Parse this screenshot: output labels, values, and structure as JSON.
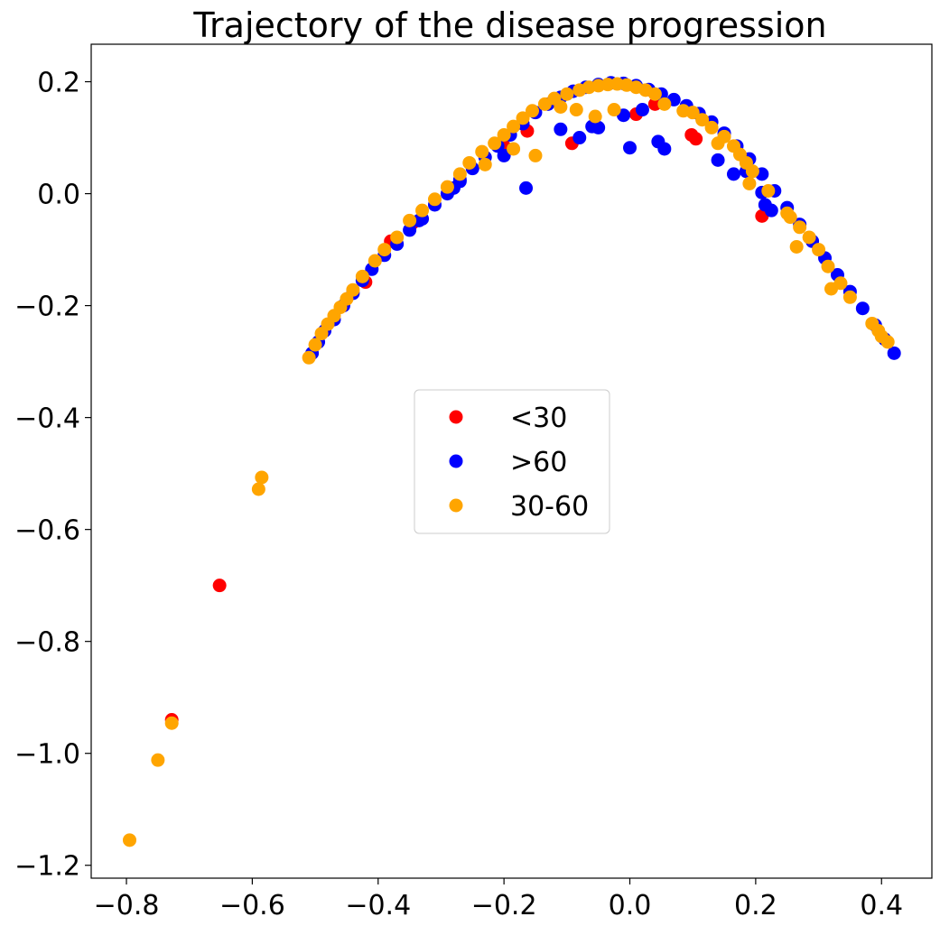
{
  "chart_data": {
    "type": "scatter",
    "title": "Trajectory of the disease progression",
    "xlabel": "",
    "ylabel": "",
    "xlim": [
      -0.856,
      0.48
    ],
    "ylim": [
      -1.223,
      0.267
    ],
    "xticks": [
      -0.8,
      -0.6,
      -0.4,
      -0.2,
      0.0,
      0.2,
      0.4
    ],
    "xtick_labels": [
      "−0.8",
      "−0.6",
      "−0.4",
      "−0.2",
      "0.0",
      "0.2",
      "0.4"
    ],
    "yticks": [
      0.2,
      0.0,
      -0.2,
      -0.4,
      -0.6,
      -0.8,
      -1.0,
      -1.2
    ],
    "ytick_labels": [
      "0.2",
      "0.0",
      "−0.2",
      "−0.4",
      "−0.6",
      "−0.8",
      "−1.0",
      "−1.2"
    ],
    "grid": false,
    "legend_position": "center",
    "series": [
      {
        "name": "<30",
        "color": "#ff0000",
        "points": [
          [
            -0.728,
            -0.94
          ],
          [
            -0.652,
            -0.7
          ],
          [
            -0.42,
            -0.158
          ],
          [
            -0.38,
            -0.085
          ],
          [
            -0.345,
            -0.052
          ],
          [
            -0.2,
            0.085
          ],
          [
            -0.163,
            0.112
          ],
          [
            -0.092,
            0.09
          ],
          [
            0.01,
            0.142
          ],
          [
            0.04,
            0.16
          ],
          [
            0.098,
            0.105
          ],
          [
            0.105,
            0.098
          ],
          [
            0.21,
            -0.04
          ]
        ]
      },
      {
        "name": ">60",
        "color": "#0000ff",
        "points": [
          [
            -0.505,
            -0.285
          ],
          [
            -0.495,
            -0.265
          ],
          [
            -0.485,
            -0.245
          ],
          [
            -0.47,
            -0.225
          ],
          [
            -0.455,
            -0.2
          ],
          [
            -0.44,
            -0.178
          ],
          [
            -0.425,
            -0.155
          ],
          [
            -0.41,
            -0.135
          ],
          [
            -0.39,
            -0.11
          ],
          [
            -0.37,
            -0.09
          ],
          [
            -0.35,
            -0.065
          ],
          [
            -0.33,
            -0.045
          ],
          [
            -0.31,
            -0.02
          ],
          [
            -0.29,
            0.0
          ],
          [
            -0.27,
            0.022
          ],
          [
            -0.25,
            0.045
          ],
          [
            -0.23,
            0.065
          ],
          [
            -0.21,
            0.085
          ],
          [
            -0.19,
            0.105
          ],
          [
            -0.17,
            0.125
          ],
          [
            -0.15,
            0.145
          ],
          [
            -0.13,
            0.16
          ],
          [
            -0.11,
            0.172
          ],
          [
            -0.09,
            0.183
          ],
          [
            -0.07,
            0.19
          ],
          [
            -0.05,
            0.195
          ],
          [
            -0.03,
            0.198
          ],
          [
            -0.01,
            0.197
          ],
          [
            0.01,
            0.193
          ],
          [
            0.03,
            0.186
          ],
          [
            0.05,
            0.178
          ],
          [
            0.07,
            0.168
          ],
          [
            0.09,
            0.157
          ],
          [
            0.11,
            0.143
          ],
          [
            0.13,
            0.128
          ],
          [
            0.15,
            0.108
          ],
          [
            0.17,
            0.085
          ],
          [
            0.19,
            0.062
          ],
          [
            0.21,
            0.035
          ],
          [
            0.23,
            0.005
          ],
          [
            0.25,
            -0.025
          ],
          [
            0.27,
            -0.055
          ],
          [
            0.29,
            -0.085
          ],
          [
            0.31,
            -0.115
          ],
          [
            0.33,
            -0.145
          ],
          [
            0.35,
            -0.175
          ],
          [
            0.37,
            -0.205
          ],
          [
            0.39,
            -0.235
          ],
          [
            0.405,
            -0.26
          ],
          [
            0.42,
            -0.285
          ],
          [
            -0.165,
            0.01
          ],
          [
            -0.2,
            0.068
          ],
          [
            -0.11,
            0.115
          ],
          [
            -0.08,
            0.1
          ],
          [
            -0.06,
            0.12
          ],
          [
            -0.05,
            0.118
          ],
          [
            -0.01,
            0.14
          ],
          [
            0.0,
            0.082
          ],
          [
            0.02,
            0.15
          ],
          [
            0.045,
            0.093
          ],
          [
            0.055,
            0.08
          ],
          [
            0.14,
            0.06
          ],
          [
            0.165,
            0.035
          ],
          [
            0.185,
            0.04
          ],
          [
            0.21,
            0.002
          ],
          [
            0.215,
            -0.02
          ],
          [
            0.225,
            -0.03
          ],
          [
            -0.335,
            -0.048
          ],
          [
            -0.28,
            0.01
          ],
          [
            -0.27,
            0.025
          ]
        ]
      },
      {
        "name": "30-60",
        "color": "#ffa500",
        "points": [
          [
            -0.795,
            -1.155
          ],
          [
            -0.75,
            -1.012
          ],
          [
            -0.728,
            -0.946
          ],
          [
            -0.59,
            -0.528
          ],
          [
            -0.585,
            -0.507
          ],
          [
            -0.51,
            -0.293
          ],
          [
            -0.5,
            -0.27
          ],
          [
            -0.49,
            -0.25
          ],
          [
            -0.48,
            -0.233
          ],
          [
            -0.47,
            -0.218
          ],
          [
            -0.46,
            -0.203
          ],
          [
            -0.45,
            -0.188
          ],
          [
            -0.44,
            -0.172
          ],
          [
            -0.425,
            -0.148
          ],
          [
            -0.405,
            -0.12
          ],
          [
            -0.39,
            -0.1
          ],
          [
            -0.37,
            -0.078
          ],
          [
            -0.35,
            -0.048
          ],
          [
            -0.33,
            -0.03
          ],
          [
            -0.31,
            -0.01
          ],
          [
            -0.29,
            0.012
          ],
          [
            -0.27,
            0.035
          ],
          [
            -0.255,
            0.055
          ],
          [
            -0.235,
            0.075
          ],
          [
            -0.23,
            0.052
          ],
          [
            -0.215,
            0.09
          ],
          [
            -0.2,
            0.105
          ],
          [
            -0.185,
            0.12
          ],
          [
            -0.185,
            0.08
          ],
          [
            -0.17,
            0.135
          ],
          [
            -0.155,
            0.148
          ],
          [
            -0.15,
            0.068
          ],
          [
            -0.135,
            0.16
          ],
          [
            -0.12,
            0.17
          ],
          [
            -0.11,
            0.155
          ],
          [
            -0.1,
            0.178
          ],
          [
            -0.085,
            0.15
          ],
          [
            -0.08,
            0.185
          ],
          [
            -0.065,
            0.19
          ],
          [
            -0.055,
            0.138
          ],
          [
            -0.05,
            0.193
          ],
          [
            -0.035,
            0.195
          ],
          [
            -0.025,
            0.15
          ],
          [
            -0.02,
            0.196
          ],
          [
            -0.005,
            0.194
          ],
          [
            0.01,
            0.19
          ],
          [
            0.025,
            0.185
          ],
          [
            0.04,
            0.178
          ],
          [
            0.055,
            0.16
          ],
          [
            0.085,
            0.148
          ],
          [
            0.1,
            0.145
          ],
          [
            0.115,
            0.132
          ],
          [
            0.13,
            0.118
          ],
          [
            0.14,
            0.09
          ],
          [
            0.15,
            0.102
          ],
          [
            0.165,
            0.085
          ],
          [
            0.175,
            0.07
          ],
          [
            0.185,
            0.055
          ],
          [
            0.195,
            0.04
          ],
          [
            0.19,
            0.018
          ],
          [
            0.22,
            0.005
          ],
          [
            0.25,
            -0.035
          ],
          [
            0.255,
            -0.042
          ],
          [
            0.265,
            -0.095
          ],
          [
            0.27,
            -0.06
          ],
          [
            0.285,
            -0.078
          ],
          [
            0.3,
            -0.1
          ],
          [
            0.315,
            -0.13
          ],
          [
            0.32,
            -0.17
          ],
          [
            0.335,
            -0.16
          ],
          [
            0.35,
            -0.185
          ],
          [
            0.385,
            -0.232
          ],
          [
            0.395,
            -0.245
          ],
          [
            0.4,
            -0.255
          ],
          [
            0.41,
            -0.265
          ]
        ]
      }
    ]
  }
}
